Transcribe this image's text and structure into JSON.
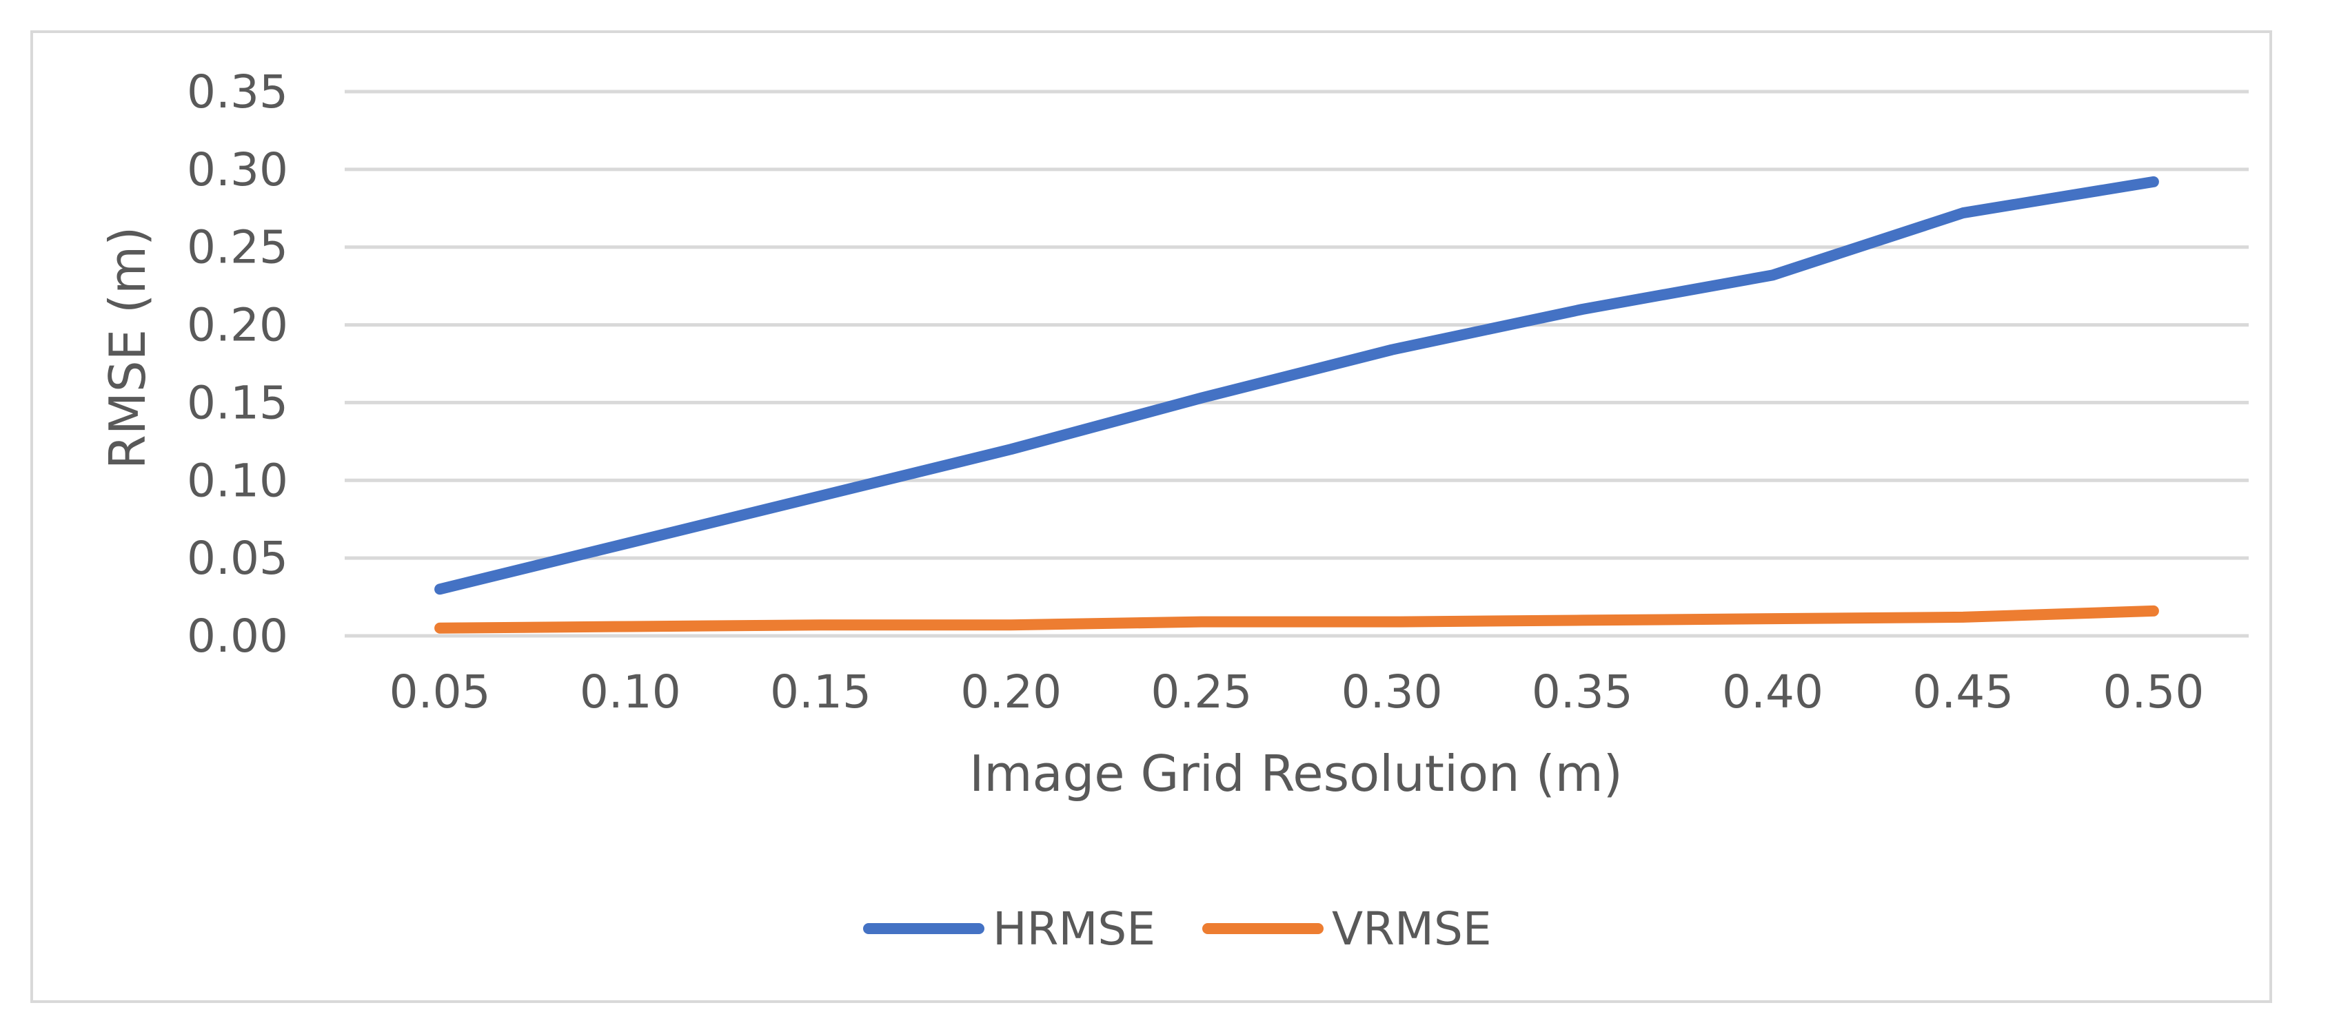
{
  "chart_data": {
    "type": "line",
    "xlabel": "Image Grid Resolution (m)",
    "ylabel": "RMSE (m)",
    "categories": [
      "0.05",
      "0.10",
      "0.15",
      "0.20",
      "0.25",
      "0.30",
      "0.35",
      "0.40",
      "0.45",
      "0.50"
    ],
    "y_ticks": [
      "0.00",
      "0.05",
      "0.10",
      "0.15",
      "0.20",
      "0.25",
      "0.30",
      "0.35"
    ],
    "ylim": [
      0,
      0.35
    ],
    "grid": true,
    "legend_position": "bottom",
    "series": [
      {
        "name": "HRMSE",
        "color": "#4472c4",
        "values": [
          0.03,
          0.06,
          0.09,
          0.12,
          0.153,
          0.184,
          0.21,
          0.232,
          0.272,
          0.292
        ]
      },
      {
        "name": "VRMSE",
        "color": "#ed7d31",
        "values": [
          0.005,
          0.006,
          0.007,
          0.007,
          0.009,
          0.009,
          0.01,
          0.011,
          0.012,
          0.016
        ]
      }
    ]
  }
}
